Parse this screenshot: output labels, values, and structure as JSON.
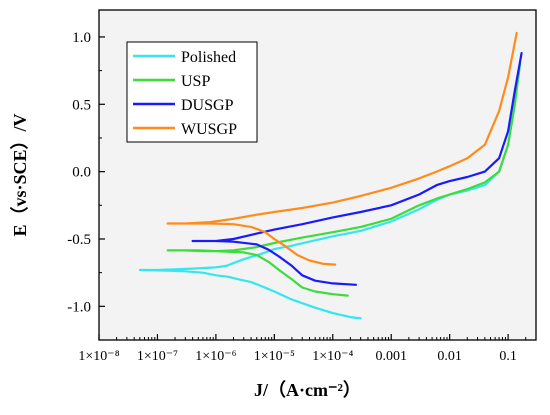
{
  "chart_data": {
    "type": "line",
    "title": "",
    "xlabel": "J/（A·cm⁻²）",
    "ylabel": "E（vs·SCE）/V",
    "x_scale": "log",
    "xlim": [
      1e-08,
      0.3
    ],
    "ylim": [
      -1.25,
      1.2
    ],
    "grid": false,
    "legend_position": "top-left",
    "background_color": "#f3f3f3",
    "x_ticks": [
      {
        "value": 1e-08,
        "label": "1×10⁻⁸"
      },
      {
        "value": 1e-07,
        "label": "1×10⁻⁷"
      },
      {
        "value": 1e-06,
        "label": "1×10⁻⁶"
      },
      {
        "value": 1e-05,
        "label": "1×10⁻⁵"
      },
      {
        "value": 0.0001,
        "label": "1×10⁻⁴"
      },
      {
        "value": 0.001,
        "label": "0.001"
      },
      {
        "value": 0.01,
        "label": "0.01"
      },
      {
        "value": 0.1,
        "label": "0.1"
      }
    ],
    "y_ticks": [
      {
        "value": 1.0,
        "label": "1.0"
      },
      {
        "value": 0.5,
        "label": "0.5"
      },
      {
        "value": 0.0,
        "label": "0.0"
      },
      {
        "value": -0.5,
        "label": "-0.5"
      },
      {
        "value": -1.0,
        "label": "-1.0"
      }
    ],
    "series": [
      {
        "name": "Polished",
        "color": "#33e6f0",
        "x": [
          0.0003,
          0.0002,
          0.0001,
          5e-05,
          2e-05,
          1e-05,
          6e-06,
          4e-06,
          2.5e-06,
          1.6e-06,
          1e-06,
          6e-07,
          3e-07,
          1.5e-07,
          5e-08,
          1e-07,
          2e-07,
          4e-07,
          7e-07,
          1e-06,
          1.5e-06,
          3e-06,
          6e-06,
          1e-05,
          2e-05,
          5e-05,
          0.0001,
          0.0003,
          0.001,
          0.003,
          0.006,
          0.01,
          0.02,
          0.04,
          0.07,
          0.1,
          0.13,
          0.16
        ],
        "y": [
          -1.09,
          -1.08,
          -1.05,
          -1.01,
          -0.95,
          -0.89,
          -0.85,
          -0.82,
          -0.8,
          -0.78,
          -0.77,
          -0.75,
          -0.74,
          -0.735,
          -0.73,
          -0.73,
          -0.725,
          -0.72,
          -0.715,
          -0.71,
          -0.7,
          -0.65,
          -0.61,
          -0.575,
          -0.55,
          -0.51,
          -0.48,
          -0.44,
          -0.37,
          -0.28,
          -0.21,
          -0.17,
          -0.14,
          -0.1,
          0.0,
          0.2,
          0.5,
          0.8
        ]
      },
      {
        "name": "USP",
        "color": "#3ddc3d",
        "x": [
          0.00018,
          0.0001,
          5e-05,
          3e-05,
          2e-05,
          1.2e-05,
          8e-06,
          5e-06,
          3e-06,
          1e-06,
          5e-07,
          1.5e-07,
          3e-07,
          6e-07,
          1e-06,
          2e-06,
          5e-06,
          1e-05,
          3e-05,
          0.0001,
          0.0003,
          0.001,
          0.003,
          0.006,
          0.01,
          0.02,
          0.04,
          0.07,
          0.1,
          0.13,
          0.16
        ],
        "y": [
          -0.92,
          -0.91,
          -0.89,
          -0.86,
          -0.8,
          -0.73,
          -0.67,
          -0.62,
          -0.6,
          -0.59,
          -0.585,
          -0.585,
          -0.585,
          -0.59,
          -0.59,
          -0.585,
          -0.56,
          -0.53,
          -0.49,
          -0.45,
          -0.41,
          -0.35,
          -0.25,
          -0.2,
          -0.17,
          -0.13,
          -0.08,
          0.0,
          0.2,
          0.5,
          0.8
        ]
      },
      {
        "name": "DUSGP",
        "color": "#1a1aff",
        "x": [
          0.00025,
          0.0001,
          5e-05,
          3e-05,
          2e-05,
          1.2e-05,
          8e-06,
          5e-06,
          2e-06,
          1e-06,
          4e-07,
          1e-06,
          2e-06,
          5e-06,
          1e-05,
          3e-05,
          0.0001,
          0.0003,
          0.001,
          0.003,
          0.006,
          0.01,
          0.02,
          0.04,
          0.07,
          0.1,
          0.13,
          0.17
        ],
        "y": [
          -0.84,
          -0.83,
          -0.81,
          -0.77,
          -0.7,
          -0.63,
          -0.58,
          -0.54,
          -0.52,
          -0.515,
          -0.515,
          -0.515,
          -0.5,
          -0.46,
          -0.43,
          -0.39,
          -0.34,
          -0.3,
          -0.25,
          -0.17,
          -0.1,
          -0.07,
          -0.04,
          0.0,
          0.1,
          0.3,
          0.6,
          0.88
        ]
      },
      {
        "name": "WUSGP",
        "color": "#ff8c1a",
        "x": [
          0.00011,
          7e-05,
          4e-05,
          2.5e-05,
          1.5e-05,
          1e-05,
          7e-06,
          4e-06,
          2e-06,
          8e-07,
          3e-07,
          1.5e-07,
          3e-07,
          8e-07,
          2e-06,
          5e-06,
          1e-05,
          3e-05,
          0.0001,
          0.0003,
          0.001,
          0.003,
          0.006,
          0.01,
          0.02,
          0.04,
          0.07,
          0.1,
          0.14
        ],
        "y": [
          -0.69,
          -0.685,
          -0.66,
          -0.62,
          -0.55,
          -0.5,
          -0.45,
          -0.41,
          -0.39,
          -0.385,
          -0.385,
          -0.385,
          -0.385,
          -0.375,
          -0.35,
          -0.32,
          -0.3,
          -0.27,
          -0.23,
          -0.18,
          -0.12,
          -0.05,
          0.0,
          0.04,
          0.1,
          0.2,
          0.45,
          0.7,
          1.03
        ]
      }
    ]
  }
}
